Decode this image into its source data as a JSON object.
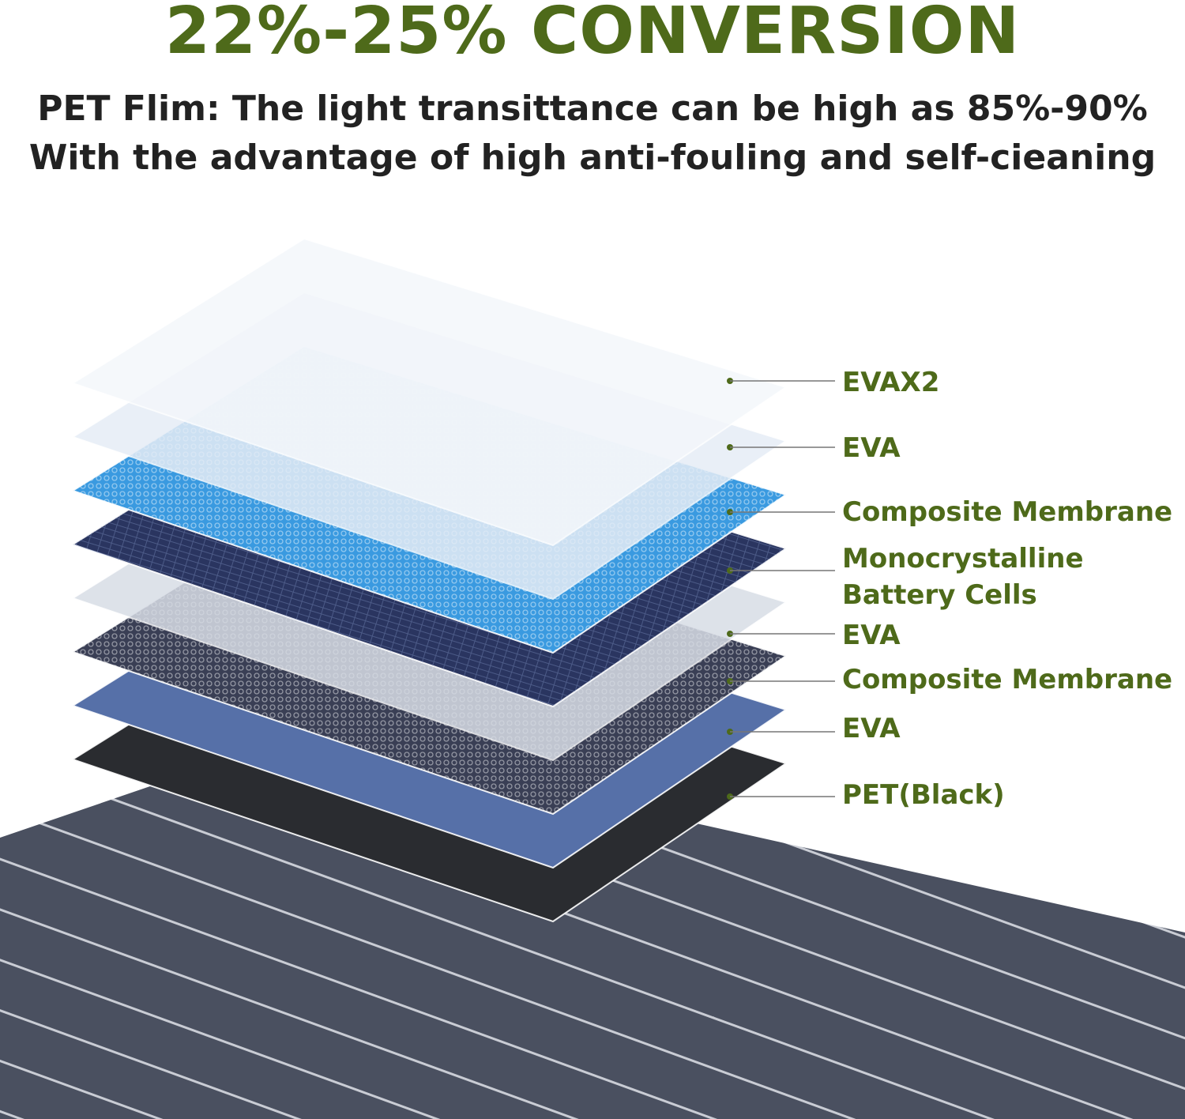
{
  "headline": "22%-25% CONVERSION",
  "subtitle_line1": "PET Flim: The light transittance can be high as 85%-90%",
  "subtitle_line2": "With the advantage of high anti-fouling and self-cieaning",
  "colors": {
    "accent": "#4e6a1a",
    "panel": "#4a5060"
  },
  "layers": [
    {
      "label": "EVAX2",
      "fill": "#f4f7fb"
    },
    {
      "label": "EVA",
      "fill": "#e6edf6"
    },
    {
      "label": "Composite Membrane",
      "fill": "#3a9ae0"
    },
    {
      "label": "Monocrystalline",
      "label2": "Battery Cells",
      "fill": "#2a3560"
    },
    {
      "label": "EVA",
      "fill": "#d8dde6"
    },
    {
      "label": "Composite Membrane",
      "fill": "#3a3f55"
    },
    {
      "label": "EVA",
      "fill": "#5670a8"
    },
    {
      "label": "PET(Black)",
      "fill": "#2a2c30"
    }
  ]
}
